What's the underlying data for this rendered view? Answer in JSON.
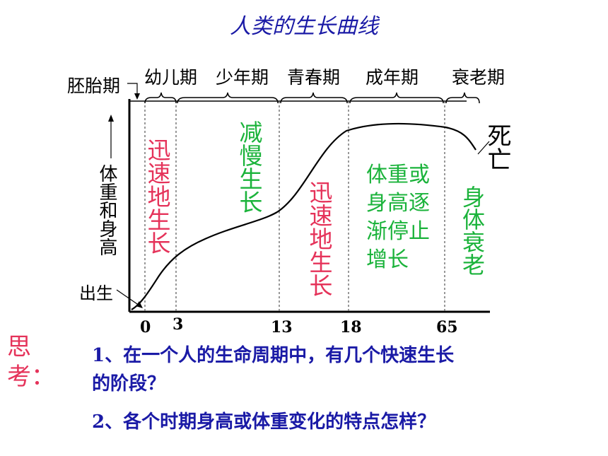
{
  "title": "人类的生长曲线",
  "stages": {
    "embryo": "胚胎期",
    "infancy": "幼儿期",
    "childhood": "少年期",
    "adolescence": "青春期",
    "adulthood": "成年期",
    "senescence": "衰老期"
  },
  "y_axis_label": "体重和身高",
  "birth_label": "出生",
  "death_label": "死亡",
  "phase_notes": {
    "rapid_1": "迅速地生长",
    "slow": "减慢生长",
    "rapid_2": "迅速地生长",
    "plateau_lines": [
      "体重或",
      "身高逐",
      "渐停止",
      "增长"
    ],
    "decline": "身体衰老"
  },
  "ticks": [
    "0",
    "3",
    "13",
    "18",
    "65"
  ],
  "think_label": "思考：",
  "questions": {
    "q1_line1": "1、在一个人的生命周期中，有几个快速生长",
    "q1_line2": "的阶段？",
    "q2": "2、各个时期身高或体重变化的特点怎样？"
  },
  "colors": {
    "title": "#1a1aa6",
    "rapid": "#e5335a",
    "slow": "#1bb33b",
    "questions": "#1a1aa6"
  }
}
